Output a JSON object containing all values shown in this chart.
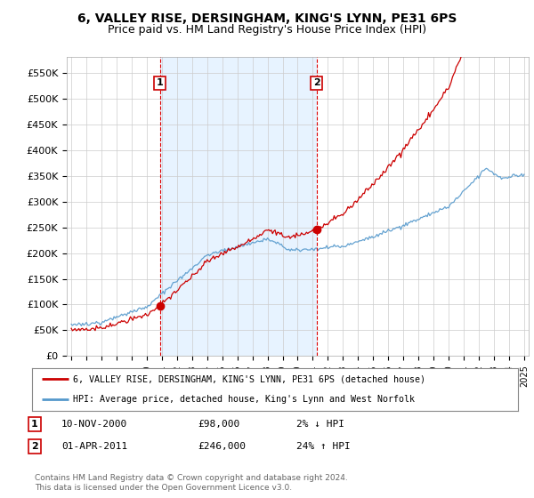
{
  "title": "6, VALLEY RISE, DERSINGHAM, KING'S LYNN, PE31 6PS",
  "subtitle": "Price paid vs. HM Land Registry's House Price Index (HPI)",
  "title_fontsize": 10,
  "subtitle_fontsize": 9,
  "ylabel_ticks": [
    "£0",
    "£50K",
    "£100K",
    "£150K",
    "£200K",
    "£250K",
    "£300K",
    "£350K",
    "£400K",
    "£450K",
    "£500K",
    "£550K"
  ],
  "ytick_values": [
    0,
    50000,
    100000,
    150000,
    200000,
    250000,
    300000,
    350000,
    400000,
    450000,
    500000,
    550000
  ],
  "ylim": [
    0,
    580000
  ],
  "xlim_start": 1994.7,
  "xlim_end": 2025.3,
  "marker1_x": 2000.87,
  "marker1_y": 98000,
  "marker1_label": "1",
  "marker2_x": 2011.25,
  "marker2_y": 246000,
  "marker2_label": "2",
  "vline1_x": 2000.87,
  "vline2_x": 2011.25,
  "vline_color": "#dd0000",
  "shade_color": "#ddeeff",
  "legend_line1_label": "6, VALLEY RISE, DERSINGHAM, KING'S LYNN, PE31 6PS (detached house)",
  "legend_line2_label": "HPI: Average price, detached house, King's Lynn and West Norfolk",
  "legend_line1_color": "#cc0000",
  "legend_line2_color": "#5599cc",
  "bg_color": "#ffffff",
  "plot_bg_color": "#ffffff",
  "grid_color": "#cccccc",
  "footer": "Contains HM Land Registry data © Crown copyright and database right 2024.\nThis data is licensed under the Open Government Licence v3.0."
}
